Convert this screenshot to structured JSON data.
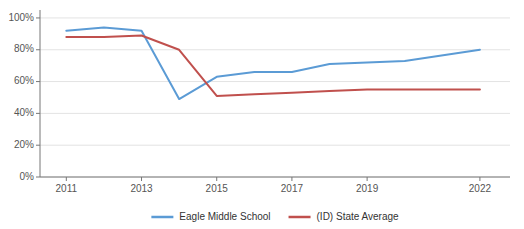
{
  "chart_data": {
    "type": "line",
    "x": [
      2011,
      2012,
      2013,
      2014,
      2015,
      2016,
      2017,
      2018,
      2019,
      2020,
      2022
    ],
    "series": [
      {
        "name": "Eagle Middle School",
        "color": "#5b9bd5",
        "values": [
          0.92,
          0.94,
          0.92,
          0.49,
          0.63,
          0.66,
          0.66,
          0.71,
          0.72,
          0.73,
          0.8
        ]
      },
      {
        "name": "(ID) State Average",
        "color": "#c0504d",
        "values": [
          0.88,
          0.88,
          0.89,
          0.8,
          0.51,
          0.52,
          0.53,
          0.54,
          0.55,
          0.55,
          0.55
        ]
      }
    ],
    "xlim": [
      2010.3,
      2022.8
    ],
    "xticks": [
      2011,
      2013,
      2015,
      2017,
      2019,
      2022
    ],
    "ylim": [
      0,
      1.05
    ],
    "yticks": [
      {
        "value": 0.0,
        "label": "0%"
      },
      {
        "value": 0.2,
        "label": "20%"
      },
      {
        "value": 0.4,
        "label": "40%"
      },
      {
        "value": 0.6,
        "label": "60%"
      },
      {
        "value": 0.8,
        "label": "80%"
      },
      {
        "value": 1.0,
        "label": "100%"
      }
    ],
    "grid": true,
    "legend": "bottom"
  }
}
